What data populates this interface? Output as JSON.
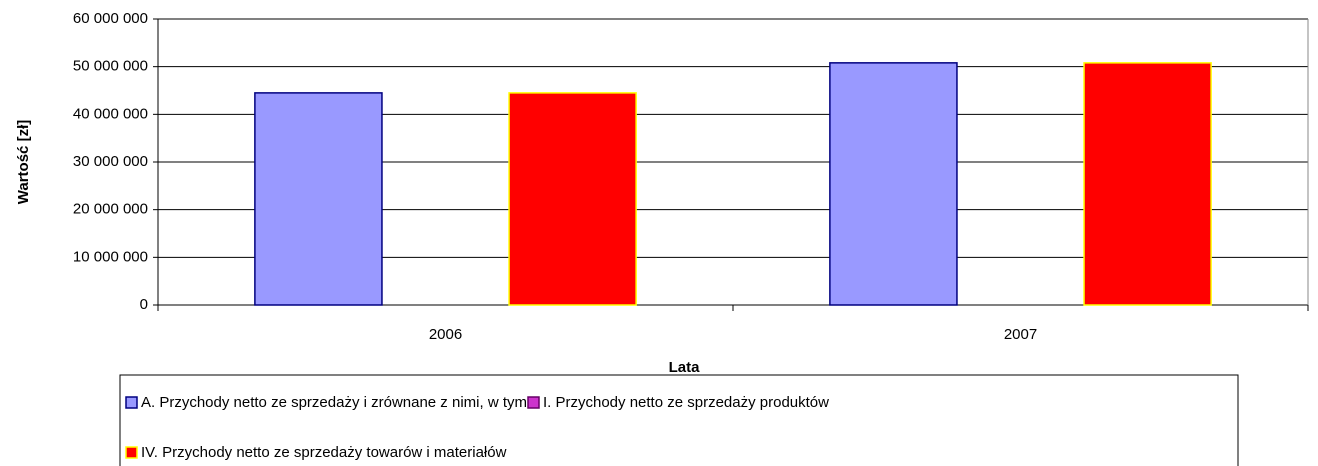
{
  "chart_data": {
    "type": "bar",
    "x_label": "Lata",
    "y_label": "Wartość [zł]",
    "categories": [
      "2006",
      "2007"
    ],
    "series": [
      {
        "name": "A. Przychody netto ze sprzedaży i zrównane z nimi, w tym:",
        "color": "#9999ff",
        "edgecolor": "#000080",
        "values": [
          44500000,
          50800000
        ]
      },
      {
        "name": "I. Przychody netto ze sprzedaży produktów",
        "color": "#cc33cc",
        "edgecolor": "#660066",
        "values": [
          0,
          0
        ]
      },
      {
        "name": "IV. Przychody netto ze sprzedaży towarów i materiałów",
        "color": "#ff0000",
        "edgecolor": "#ffff00",
        "values": [
          44500000,
          50800000
        ]
      }
    ],
    "ylim": [
      0,
      60000000
    ],
    "yticks": [
      0,
      {
        "value": 10000000,
        "label": "10 000 000"
      },
      {
        "value": 20000000,
        "label": "20 000 000"
      },
      {
        "value": 30000000,
        "label": "30 000 000"
      },
      {
        "value": 40000000,
        "label": "40 000 000"
      },
      {
        "value": 50000000,
        "label": "50 000 000"
      },
      {
        "value": 60000000,
        "label": "60 000 000"
      }
    ],
    "grid": true,
    "legend": "bottom"
  }
}
